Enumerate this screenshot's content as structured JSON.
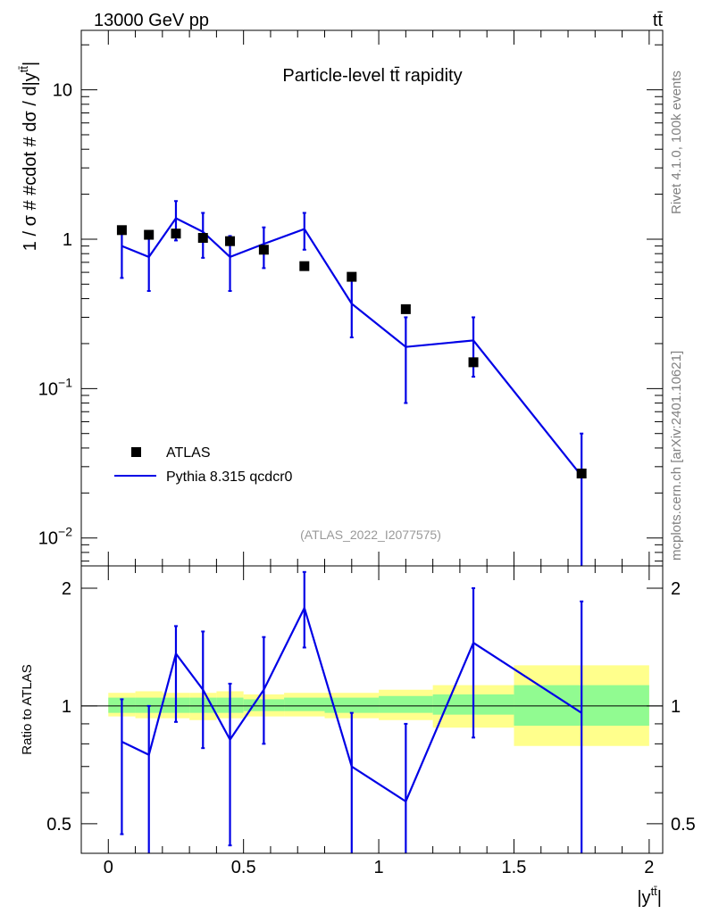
{
  "header": {
    "left": "13000 GeV pp",
    "right": "tt̄"
  },
  "side_labels": {
    "rivet": "Rivet 4.1.0,  100k events",
    "mcplots": "mcplots.cern.ch [arXiv:2401.10621]"
  },
  "chart_data": {
    "type": "line",
    "title": "Particle-level tt̄ rapidity",
    "analysis_tag": "(ATLAS_2022_I2077575)",
    "xlabel": "|y^{tt̄}|",
    "ylabel_main": "1 / σ # #cdot # dσ / d|y^{tt̄}|",
    "ylabel_ratio": "Ratio to ATLAS",
    "xlim": [
      -0.1,
      2.05
    ],
    "ylim_main": [
      0.0065,
      25
    ],
    "ylim_ratio": [
      0.42,
      2.28
    ],
    "yscale_main": "log",
    "yscale_ratio": "log",
    "x_ticks": [
      0,
      0.5,
      1,
      1.5,
      2
    ],
    "x_tick_labels": [
      "0",
      "0.5",
      "1",
      "1.5",
      "2"
    ],
    "main_y_ticks": [
      0.01,
      0.1,
      1,
      10
    ],
    "main_y_tick_labels": [
      "10^-2",
      "10^-1",
      "1",
      "10"
    ],
    "ratio_y_ticks": [
      0.5,
      1,
      2
    ],
    "ratio_y_tick_labels": [
      "0.5",
      "1",
      "2"
    ],
    "legend_position": "bottom-left",
    "bins": [
      [
        0,
        0.1
      ],
      [
        0.1,
        0.2
      ],
      [
        0.2,
        0.3
      ],
      [
        0.3,
        0.4
      ],
      [
        0.4,
        0.5
      ],
      [
        0.5,
        0.65
      ],
      [
        0.65,
        0.8
      ],
      [
        0.8,
        1.0
      ],
      [
        1.0,
        1.2
      ],
      [
        1.2,
        1.5
      ],
      [
        1.5,
        2.0
      ]
    ],
    "series": [
      {
        "name": "ATLAS",
        "type": "data",
        "color": "#000000",
        "x": [
          0.05,
          0.15,
          0.25,
          0.35,
          0.45,
          0.575,
          0.725,
          0.9,
          1.1,
          1.35,
          1.75
        ],
        "values": [
          1.15,
          1.07,
          1.09,
          1.02,
          0.97,
          0.85,
          0.66,
          0.56,
          0.34,
          0.15,
          0.027
        ]
      },
      {
        "name": "Pythia 8.315 qcdcr0",
        "type": "mc",
        "color": "#0000e6",
        "x": [
          0.05,
          0.15,
          0.25,
          0.35,
          0.45,
          0.575,
          0.725,
          0.9,
          1.1,
          1.35,
          1.75
        ],
        "values": [
          0.9,
          0.76,
          1.38,
          1.12,
          0.76,
          0.93,
          1.17,
          0.37,
          0.19,
          0.21,
          0.026
        ],
        "err_lo": [
          0.55,
          0.45,
          0.98,
          0.75,
          0.45,
          0.64,
          0.85,
          0.22,
          0.08,
          0.12,
          0.006
        ],
        "err_hi": [
          1.15,
          1.04,
          1.8,
          1.5,
          1.05,
          1.2,
          1.5,
          0.53,
          0.3,
          0.3,
          0.05
        ],
        "ratio": [
          0.81,
          0.75,
          1.36,
          1.1,
          0.82,
          1.1,
          1.78,
          0.7,
          0.57,
          1.45,
          0.96
        ],
        "ratio_lo": [
          0.47,
          0.38,
          0.91,
          0.78,
          0.44,
          0.8,
          1.41,
          0.4,
          0.4,
          0.83,
          0.4
        ],
        "ratio_hi": [
          1.04,
          1.0,
          1.6,
          1.55,
          1.14,
          1.5,
          2.2,
          0.96,
          0.9,
          2.0,
          1.85
        ]
      }
    ],
    "ratio_band_yellow": {
      "lo": [
        0.94,
        0.93,
        0.93,
        0.92,
        0.93,
        0.94,
        0.94,
        0.93,
        0.92,
        0.88,
        0.79
      ],
      "hi": [
        1.08,
        1.09,
        1.08,
        1.08,
        1.09,
        1.07,
        1.08,
        1.08,
        1.1,
        1.13,
        1.27
      ]
    },
    "ratio_band_green": {
      "lo": [
        0.96,
        0.96,
        0.96,
        0.96,
        0.96,
        0.97,
        0.97,
        0.96,
        0.96,
        0.95,
        0.89
      ],
      "hi": [
        1.05,
        1.05,
        1.05,
        1.05,
        1.05,
        1.04,
        1.05,
        1.05,
        1.06,
        1.07,
        1.13
      ]
    },
    "colors": {
      "yellow_band": "#ffff8c",
      "green_band": "#91fb91",
      "mc_line": "#0000e6",
      "data_marker": "#000000",
      "tag_text": "#999999"
    }
  }
}
